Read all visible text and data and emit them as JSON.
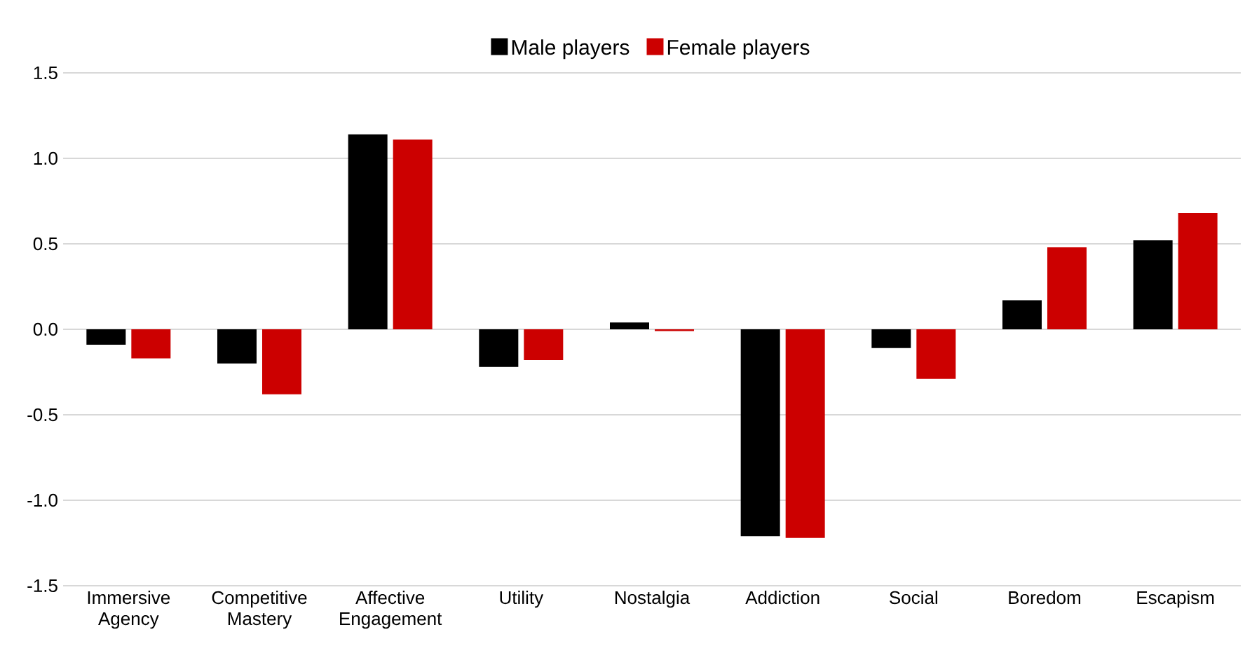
{
  "chart_data": {
    "type": "bar",
    "categories": [
      "Immersive Agency",
      "Competitive Mastery",
      "Affective Engagement",
      "Utility",
      "Nostalgia",
      "Addiction",
      "Social",
      "Boredom",
      "Escapism"
    ],
    "series": [
      {
        "name": "Male players",
        "color": "#000000",
        "values": [
          -0.09,
          -0.2,
          1.14,
          -0.22,
          0.04,
          -1.21,
          -0.11,
          0.17,
          0.52
        ]
      },
      {
        "name": "Female players",
        "color": "#cc0000",
        "values": [
          -0.17,
          -0.38,
          1.11,
          -0.18,
          -0.01,
          -1.22,
          -0.29,
          0.48,
          0.68
        ]
      }
    ],
    "ylim": [
      -1.5,
      1.5
    ],
    "yticks": [
      {
        "value": -1.5,
        "label": "-1.5"
      },
      {
        "value": -1.0,
        "label": "-1.0"
      },
      {
        "value": -0.5,
        "label": "-0.5"
      },
      {
        "value": 0,
        "label": "0.0"
      },
      {
        "value": 0.5,
        "label": "0.5"
      },
      {
        "value": 1.0,
        "label": "1.0"
      },
      {
        "value": 1.5,
        "label": "1.5"
      }
    ],
    "grid": "y",
    "legend": "top"
  }
}
